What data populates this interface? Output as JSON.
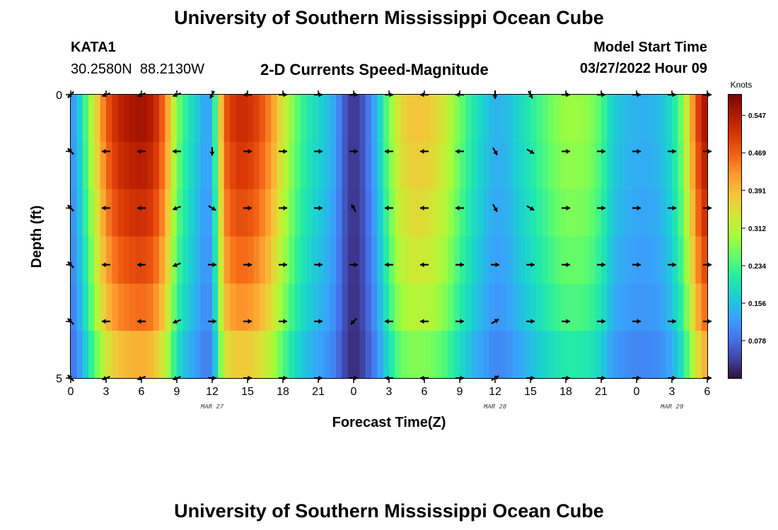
{
  "header": {
    "title": "University of Southern Mississippi Ocean Cube",
    "station_id": "KATA1",
    "coordinates": "30.2580N  88.2130W",
    "subtitle": "2-D Currents Speed-Magnitude",
    "model_start_label": "Model Start Time",
    "model_start_value": "03/27/2022 Hour 09"
  },
  "footer": {
    "title": "University of Southern Mississippi Ocean Cube"
  },
  "chart_data": {
    "type": "heatmap",
    "title": "2-D Currents Speed-Magnitude",
    "xlabel": "Forecast Time(Z)",
    "ylabel": "Depth (ft)",
    "x_ticks": [
      "0",
      "3",
      "6",
      "9",
      "12",
      "15",
      "18",
      "21",
      "0",
      "3",
      "6",
      "9",
      "12",
      "15",
      "18",
      "21",
      "0",
      "3",
      "6"
    ],
    "x_range_hours": [
      0,
      54
    ],
    "date_labels": [
      {
        "text": "MAR 27",
        "hour": 12
      },
      {
        "text": "MAR 28",
        "hour": 36
      },
      {
        "text": "MAR 29",
        "hour": 51
      }
    ],
    "y_ticks": [
      "0",
      "5"
    ],
    "y_range": [
      0,
      5
    ],
    "colorbar": {
      "unit": "Knots",
      "min": 0,
      "max": 0.59,
      "tick_labels": [
        "0.547",
        "0.469",
        "0.391",
        "0.312",
        "0.234",
        "0.156",
        "0.078"
      ],
      "stops": [
        "#30123b",
        "#4145ab",
        "#4675ed",
        "#39a2fc",
        "#1bcfd4",
        "#24eca6",
        "#61fc6c",
        "#a4fc3b",
        "#d1e834",
        "#f3c63a",
        "#fe9b2d",
        "#f36315",
        "#d93806",
        "#b11901",
        "#7a0402"
      ]
    },
    "speed_profile_hours": [
      0,
      0.5,
      1,
      2,
      3,
      4,
      5,
      6,
      7,
      8,
      9,
      10,
      11,
      11.5,
      12,
      12.5,
      13,
      14,
      15,
      16,
      17,
      18,
      19,
      20,
      21,
      22,
      22.5,
      23,
      23.5,
      24,
      24.5,
      25,
      26,
      27,
      28,
      29,
      30,
      31,
      32,
      33,
      34,
      35,
      36,
      37,
      38,
      39,
      40,
      41,
      42,
      43,
      44,
      45,
      46,
      47,
      48,
      49,
      50,
      51,
      52,
      52.5,
      53,
      53.5,
      54
    ],
    "speed_profile_knots": [
      0.11,
      0.14,
      0.2,
      0.34,
      0.47,
      0.53,
      0.55,
      0.56,
      0.54,
      0.45,
      0.27,
      0.2,
      0.15,
      0.12,
      0.15,
      0.3,
      0.47,
      0.52,
      0.52,
      0.49,
      0.43,
      0.34,
      0.26,
      0.21,
      0.18,
      0.15,
      0.12,
      0.08,
      0.04,
      0.03,
      0.04,
      0.07,
      0.15,
      0.27,
      0.36,
      0.38,
      0.38,
      0.36,
      0.32,
      0.26,
      0.21,
      0.17,
      0.14,
      0.15,
      0.18,
      0.21,
      0.24,
      0.27,
      0.29,
      0.29,
      0.28,
      0.24,
      0.17,
      0.15,
      0.14,
      0.14,
      0.15,
      0.19,
      0.28,
      0.38,
      0.46,
      0.54,
      0.56
    ],
    "depth_factors": [
      1.0,
      0.97,
      0.93,
      0.88,
      0.82,
      0.72
    ],
    "vector_hours": [
      0,
      3,
      6,
      9,
      12,
      15,
      18,
      21,
      24,
      27,
      30,
      33,
      36,
      39,
      42,
      45,
      48,
      51,
      54
    ],
    "vector_depths": [
      0,
      1,
      2,
      3,
      4,
      5
    ],
    "vector_angles_deg": [
      [
        225,
        200,
        200,
        200,
        240,
        180,
        0,
        0,
        0,
        0,
        180,
        180,
        270,
        300,
        0,
        0,
        0,
        0,
        0
      ],
      [
        135,
        180,
        180,
        180,
        270,
        0,
        0,
        0,
        0,
        180,
        180,
        180,
        300,
        330,
        0,
        0,
        0,
        0,
        0
      ],
      [
        135,
        180,
        180,
        200,
        330,
        0,
        0,
        0,
        120,
        180,
        180,
        180,
        300,
        330,
        0,
        0,
        0,
        0,
        0
      ],
      [
        135,
        180,
        180,
        200,
        0,
        0,
        0,
        0,
        0,
        180,
        180,
        0,
        0,
        0,
        0,
        0,
        0,
        0,
        0
      ],
      [
        135,
        180,
        180,
        200,
        0,
        0,
        0,
        0,
        225,
        180,
        180,
        0,
        30,
        0,
        0,
        0,
        0,
        0,
        0
      ],
      [
        135,
        200,
        200,
        200,
        0,
        0,
        0,
        0,
        0,
        180,
        180,
        0,
        30,
        0,
        0,
        0,
        0,
        0,
        0
      ]
    ]
  }
}
